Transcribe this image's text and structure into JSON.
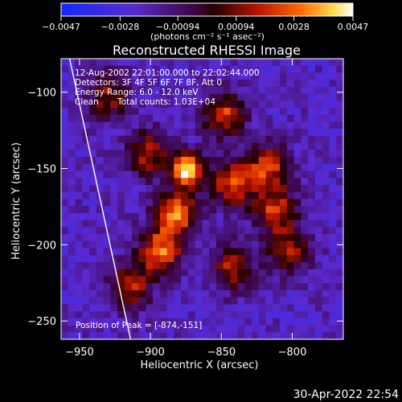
{
  "chart_data": {
    "type": "heatmap",
    "title": "Reconstructed RHESSI Image",
    "xlabel": "Heliocentric X (arcsec)",
    "ylabel": "Heliocentric Y (arcsec)",
    "xlim": [
      -963,
      -764
    ],
    "ylim": [
      -262,
      -78
    ],
    "x_ticks": [
      -950,
      -900,
      -850,
      -800
    ],
    "y_ticks": [
      -250,
      -200,
      -150,
      -100
    ],
    "x_tick_labels": [
      "−950",
      "−900",
      "−850",
      "−800"
    ],
    "y_tick_labels": [
      "−250",
      "−200",
      "−150",
      "−100"
    ],
    "colorbar": {
      "range": [
        -0.0047,
        0.0047
      ],
      "ticks": [
        -0.0047,
        -0.0028,
        -0.00094,
        0.00094,
        0.0028,
        0.0047
      ],
      "tick_labels": [
        "−0.0047",
        "−0.0028",
        "−0.00094",
        "0.00094",
        "0.0028",
        "0.0047"
      ],
      "unit_label": "(photons cm⁻² s⁻¹ asec⁻²)"
    },
    "annotations": {
      "time_range": "12-Aug-2002 22:01:00.000 to 22:02:44.000",
      "detectors": "Detectors: 3F 4F 5F 6F 7F 8F, Att 0",
      "energy": "Energy Range: 6.0 - 12.0 keV",
      "method": "Clean",
      "counts": "Total counts: 1.03E+04",
      "peak": "Position of Peak = [-874,-151]"
    },
    "peak_position": [
      -874,
      -151
    ],
    "limb_line": [
      [
        -957,
        -78
      ],
      [
        -914,
        -262
      ]
    ],
    "sources": [
      {
        "x": -874,
        "y": -151,
        "value": 0.0047
      },
      {
        "x": -882,
        "y": -180,
        "value": 0.003
      },
      {
        "x": -893,
        "y": -205,
        "value": 0.0026
      },
      {
        "x": -842,
        "y": -160,
        "value": 0.0022
      },
      {
        "x": -848,
        "y": -115,
        "value": 0.002
      },
      {
        "x": -817,
        "y": -150,
        "value": 0.0019
      },
      {
        "x": -812,
        "y": -178,
        "value": 0.0018
      },
      {
        "x": -902,
        "y": -140,
        "value": 0.0016
      },
      {
        "x": -915,
        "y": -228,
        "value": 0.0016
      },
      {
        "x": -842,
        "y": -215,
        "value": 0.0014
      },
      {
        "x": -802,
        "y": -205,
        "value": 0.0012
      },
      {
        "x": -930,
        "y": -103,
        "value": 0.001
      }
    ]
  },
  "timestamp": "30-Apr-2022 22:54"
}
